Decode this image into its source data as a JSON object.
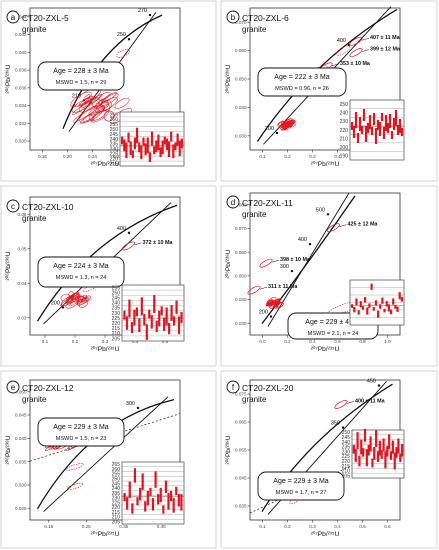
{
  "figure": {
    "x_axis_label": "²⁰⁷Pb/²³⁵U",
    "y_axis_label": "²⁰⁶Pb/²³⁸U"
  },
  "chart_data": [
    {
      "type": "scatter",
      "panel": "a",
      "sample": "CT20-ZXL-5",
      "rock": "granite",
      "age_text": "Age = 228 ± 3 Ma",
      "mswd_text": "MSWD = 1.5, n = 29",
      "xlim": [
        0.16,
        0.4
      ],
      "ylim": [
        0.028,
        0.044
      ],
      "x_ticks": [
        "0.16",
        "0.20",
        "0.24",
        "0.28",
        "0.32",
        "0.36"
      ],
      "y_ticks": [
        "0.030",
        "0.032",
        "0.034",
        "0.036",
        "0.038",
        "0.040",
        "0.042",
        "0.044"
      ],
      "concordia_ages": [
        "210",
        "230",
        "250",
        "270"
      ],
      "annotations": [],
      "inset": {
        "ylim": [
          210,
          265
        ],
        "ticks": [
          "215",
          "220",
          "225",
          "230",
          "235",
          "240",
          "245",
          "250",
          "255",
          "260",
          "265"
        ],
        "values": [
          236,
          231,
          226,
          239,
          228,
          222,
          233,
          241,
          229,
          224,
          235,
          227,
          231,
          219,
          238,
          226,
          230,
          234,
          224,
          229,
          236,
          232,
          227,
          240,
          225,
          230,
          237,
          228,
          233
        ]
      }
    },
    {
      "type": "scatter",
      "panel": "b",
      "sample": "CT20-ZXL-6",
      "rock": "granite",
      "age_text": "Age = 222 ± 3 Ma",
      "mswd_text": "MSWD = 0.96, n = 26",
      "xlim": [
        0.1,
        0.65
      ],
      "ylim": [
        0.025,
        0.075
      ],
      "x_ticks": [
        "0.1",
        "0.2",
        "0.3",
        "0.4",
        "0.5",
        "0.6"
      ],
      "y_ticks": [
        "0.030",
        "0.040",
        "0.050",
        "0.060",
        "0.070"
      ],
      "concordia_ages": [
        "200",
        "300",
        "400"
      ],
      "annotations": [
        "407 ± 11 Ma",
        "399 ± 12 Ma",
        "353 ± 10 Ma"
      ],
      "inset": {
        "ylim": [
          190,
          250
        ],
        "ticks": [
          "190",
          "200",
          "210",
          "220",
          "230",
          "240",
          "250"
        ],
        "values": [
          224,
          218,
          230,
          212,
          226,
          220,
          235,
          216,
          222,
          228,
          219,
          231,
          214,
          225,
          221,
          233,
          217,
          227,
          222,
          229,
          215,
          226,
          232,
          220,
          224,
          218
        ]
      }
    },
    {
      "type": "scatter",
      "panel": "c",
      "sample": "CT20-ZXL-10",
      "rock": "granite",
      "age_text": "Age = 224 ± 3 Ma",
      "mswd_text": "MSWD = 1.3, n = 24",
      "xlim": [
        0.1,
        0.55
      ],
      "ylim": [
        0.025,
        0.07
      ],
      "x_ticks": [
        "0.1",
        "0.2",
        "0.3",
        "0.4",
        "0.5"
      ],
      "y_ticks": [
        "0.03",
        "0.04",
        "0.05",
        "0.06"
      ],
      "concordia_ages": [
        "200",
        "300",
        "400"
      ],
      "annotations": [
        "372 ± 10 Ma"
      ],
      "inset": {
        "ylim": [
          205,
          255
        ],
        "ticks": [
          "205",
          "210",
          "215",
          "220",
          "225",
          "230",
          "235",
          "240",
          "245",
          "250",
          "255"
        ],
        "values": [
          228,
          221,
          234,
          217,
          226,
          231,
          219,
          236,
          224,
          213,
          229,
          222,
          238,
          218,
          225,
          232,
          220,
          227,
          216,
          230,
          223,
          235,
          219,
          226
        ]
      }
    },
    {
      "type": "scatter",
      "panel": "d",
      "sample": "CT20-ZXL-11",
      "rock": "granite",
      "age_text": "Age = 229 ± 4 Ma",
      "mswd_text": "MSWD = 2.1, n = 24",
      "xlim": [
        0.0,
        1.1
      ],
      "ylim": [
        0.025,
        0.09
      ],
      "x_ticks": [
        "0.0",
        "0.2",
        "0.4",
        "0.6",
        "0.8",
        "1.0"
      ],
      "y_ticks": [
        "0.030",
        "0.040",
        "0.050",
        "0.060",
        "0.070",
        "0.080"
      ],
      "concordia_ages": [
        "200",
        "300",
        "400",
        "500"
      ],
      "annotations": [
        "425 ± 12 Ma",
        "398 ± 10 Ma",
        "311 ± 11 Ma"
      ],
      "inset": {
        "ylim": [
          190,
          290
        ],
        "ticks": [],
        "values": [
          232,
          224,
          241,
          218,
          236,
          228,
          246,
          221,
          233,
          275,
          226,
          239,
          214,
          231,
          244,
          222,
          237,
          228,
          219,
          242,
          230,
          225,
          255,
          247
        ]
      }
    },
    {
      "type": "scatter",
      "panel": "e",
      "sample": "CT20-ZXL-12",
      "rock": "granite",
      "age_text": "Age = 229 ± 3 Ma",
      "mswd_text": "MSWD = 1.5, n = 23",
      "xlim": [
        0.15,
        0.5
      ],
      "ylim": [
        0.025,
        0.055
      ],
      "x_ticks": [
        "0.15",
        "0.25",
        "0.35",
        "0.45"
      ],
      "y_ticks": [
        "0.025",
        "0.030",
        "0.035",
        "0.040",
        "0.045",
        "0.050"
      ],
      "concordia_ages": [
        "200",
        "300"
      ],
      "annotations": [],
      "inset": {
        "ylim": [
          205,
          265
        ],
        "ticks": [
          "205",
          "210",
          "215",
          "220",
          "225",
          "230",
          "235",
          "240",
          "245",
          "250",
          "255",
          "260",
          "265"
        ],
        "values": [
          231,
          225,
          238,
          220,
          252,
          227,
          234,
          246,
          222,
          230,
          236,
          224,
          248,
          229,
          233,
          219,
          241,
          227,
          232,
          223,
          237,
          228,
          226
        ]
      }
    },
    {
      "type": "scatter",
      "panel": "f",
      "sample": "CT20-ZXL-20",
      "rock": "granite",
      "age_text": "Age = 229 ± 3 Ma",
      "mswd_text": "MSWD = 1.7, n = 27",
      "xlim": [
        0.1,
        0.6
      ],
      "ylim": [
        0.025,
        0.075
      ],
      "x_ticks": [
        "0.1",
        "0.2",
        "0.3",
        "0.4",
        "0.5",
        "0.6"
      ],
      "y_ticks": [
        "0.035",
        "0.045",
        "0.055",
        "0.065",
        "0.075"
      ],
      "concordia_ages": [
        "250",
        "350",
        "450"
      ],
      "annotations": [
        "400 ± 11 Ma"
      ],
      "inset": {
        "ylim": [
          205,
          250
        ],
        "ticks": [
          "205",
          "210",
          "215",
          "220",
          "225",
          "230",
          "235",
          "240",
          "245",
          "250"
        ],
        "values": [
          232,
          226,
          240,
          221,
          234,
          229,
          245,
          224,
          231,
          237,
          219,
          228,
          242,
          225,
          233,
          227,
          236,
          222,
          230,
          239,
          226,
          234,
          221,
          229,
          235,
          224,
          231
        ]
      }
    }
  ]
}
